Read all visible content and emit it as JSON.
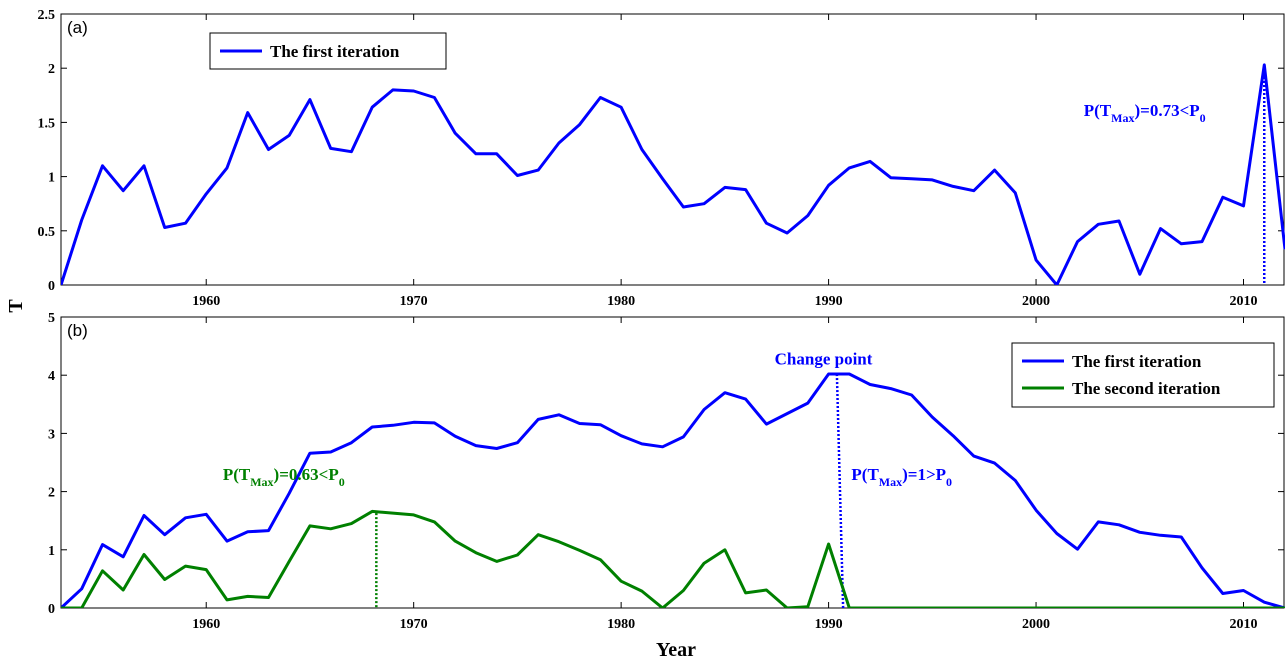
{
  "chart_data": [
    {
      "type": "line",
      "panel_label": "(a)",
      "xlabel": "",
      "ylabel": "",
      "xlim": [
        1953,
        2012
      ],
      "ylim": [
        0,
        2.5
      ],
      "xticks": [
        1960,
        1970,
        1980,
        1990,
        2000,
        2010
      ],
      "yticks": [
        0,
        0.5,
        1,
        1.5,
        2,
        2.5
      ],
      "ytick_labels": [
        "0",
        "0.5",
        "1",
        "1.5",
        "2",
        "2.5"
      ],
      "legend_position": "top-left",
      "series": [
        {
          "name": "The first iteration",
          "color": "#0000ff",
          "x": [
            1953,
            1954,
            1955,
            1956,
            1957,
            1958,
            1959,
            1960,
            1961,
            1962,
            1963,
            1964,
            1965,
            1966,
            1967,
            1968,
            1969,
            1970,
            1971,
            1972,
            1973,
            1974,
            1975,
            1976,
            1977,
            1978,
            1979,
            1980,
            1981,
            1982,
            1983,
            1984,
            1985,
            1986,
            1987,
            1988,
            1989,
            1990,
            1991,
            1992,
            1993,
            1994,
            1995,
            1996,
            1997,
            1998,
            1999,
            2000,
            2001,
            2002,
            2003,
            2004,
            2005,
            2006,
            2007,
            2008,
            2009,
            2010,
            2011,
            2012
          ],
          "y": [
            0,
            0.6,
            1.1,
            0.87,
            1.1,
            0.53,
            0.57,
            0.84,
            1.08,
            1.59,
            1.25,
            1.38,
            1.71,
            1.26,
            1.23,
            1.64,
            1.8,
            1.79,
            1.73,
            1.4,
            1.21,
            1.21,
            1.01,
            1.06,
            1.31,
            1.48,
            1.73,
            1.64,
            1.25,
            0.98,
            0.72,
            0.75,
            0.9,
            0.88,
            0.57,
            0.48,
            0.64,
            0.92,
            1.08,
            1.14,
            0.99,
            0.98,
            0.97,
            0.91,
            0.87,
            1.06,
            0.85,
            0.23,
            0,
            0.4,
            0.56,
            0.59,
            0.1,
            0.52,
            0.38,
            0.4,
            0.81,
            0.73,
            2.03,
            0.33
          ]
        }
      ],
      "vlines": [
        {
          "x": 2011,
          "y_top": 2.03,
          "color": "#0000ff"
        }
      ],
      "annotations": [
        {
          "pre": "P(T",
          "sub1": "Max",
          "mid": ")=0.73<P",
          "sub2": "0",
          "x": 2002.3,
          "y": 1.56,
          "color": "#0000ff"
        }
      ]
    },
    {
      "type": "line",
      "panel_label": "(b)",
      "xlabel": "Year",
      "ylabel": "",
      "xlim": [
        1953,
        2012
      ],
      "ylim": [
        0,
        5
      ],
      "xticks": [
        1960,
        1970,
        1980,
        1990,
        2000,
        2010
      ],
      "yticks": [
        0,
        1,
        2,
        3,
        4,
        5
      ],
      "ytick_labels": [
        "0",
        "1",
        "2",
        "3",
        "4",
        "5"
      ],
      "legend_position": "top-right",
      "series": [
        {
          "name": "The first iteration",
          "color": "#0000ff",
          "x": [
            1953,
            1954,
            1955,
            1956,
            1957,
            1958,
            1959,
            1960,
            1961,
            1962,
            1963,
            1964,
            1965,
            1966,
            1967,
            1968,
            1969,
            1970,
            1971,
            1972,
            1973,
            1974,
            1975,
            1976,
            1977,
            1978,
            1979,
            1980,
            1981,
            1982,
            1983,
            1984,
            1985,
            1986,
            1987,
            1988,
            1989,
            1990,
            1991,
            1992,
            1993,
            1994,
            1995,
            1996,
            1997,
            1998,
            1999,
            2000,
            2001,
            2002,
            2003,
            2004,
            2005,
            2006,
            2007,
            2008,
            2009,
            2010,
            2011,
            2012
          ],
          "y": [
            0,
            0.33,
            1.09,
            0.88,
            1.59,
            1.26,
            1.55,
            1.61,
            1.15,
            1.31,
            1.33,
            1.97,
            2.66,
            2.68,
            2.84,
            3.11,
            3.14,
            3.19,
            3.18,
            2.95,
            2.79,
            2.74,
            2.84,
            3.24,
            3.32,
            3.17,
            3.15,
            2.96,
            2.82,
            2.77,
            2.94,
            3.41,
            3.7,
            3.59,
            3.16,
            3.34,
            3.52,
            4.02,
            4.02,
            3.84,
            3.77,
            3.66,
            3.28,
            2.96,
            2.61,
            2.49,
            2.19,
            1.68,
            1.28,
            1.01,
            1.48,
            1.43,
            1.3,
            1.25,
            1.22,
            0.69,
            0.25,
            0.3,
            0.1,
            0
          ]
        },
        {
          "name": "The second iteration",
          "color": "#008000",
          "x": [
            1953,
            1954,
            1955,
            1956,
            1957,
            1958,
            1959,
            1960,
            1961,
            1962,
            1963,
            1964,
            1965,
            1966,
            1967,
            1968,
            1969,
            1970,
            1971,
            1972,
            1973,
            1974,
            1975,
            1976,
            1977,
            1978,
            1979,
            1980,
            1981,
            1982,
            1983,
            1984,
            1985,
            1986,
            1987,
            1988,
            1989,
            1990,
            1991,
            1992,
            1993,
            1994,
            1995,
            1996,
            1997,
            1998,
            1999,
            2000,
            2001,
            2002,
            2003,
            2004,
            2005,
            2006,
            2007,
            2008,
            2009,
            2010,
            2011,
            2012
          ],
          "y": [
            0,
            0,
            0.64,
            0.31,
            0.92,
            0.49,
            0.72,
            0.66,
            0.14,
            0.2,
            0.18,
            0.8,
            1.41,
            1.36,
            1.45,
            1.66,
            1.63,
            1.6,
            1.48,
            1.15,
            0.95,
            0.8,
            0.91,
            1.26,
            1.14,
            0.99,
            0.83,
            0.46,
            0.29,
            0,
            0.3,
            0.77,
            1.0,
            0.26,
            0.31,
            0,
            0.02,
            1.1,
            0,
            0,
            0,
            0,
            0,
            0,
            0,
            0,
            0,
            0,
            0,
            0,
            0,
            0,
            0,
            0,
            0,
            0,
            0,
            0,
            0,
            0
          ]
        }
      ],
      "vlines": [
        {
          "x": 1968.2,
          "y_top": 1.63,
          "color": "#008000"
        },
        {
          "x": 1990.4,
          "x_bottom": 1990.7,
          "y_top": 4.02,
          "color": "#0000ff"
        }
      ],
      "annotations": [
        {
          "pre": "Change point",
          "x": 1987.4,
          "y": 4.18,
          "color": "#0000ff"
        },
        {
          "pre": "P(T",
          "sub1": "Max",
          "mid": ")=0.63<P",
          "sub2": "0",
          "x": 1960.8,
          "y": 2.2,
          "color": "#008000"
        },
        {
          "pre": "P(T",
          "sub1": "Max",
          "mid": ")=1>P",
          "sub2": "0",
          "x": 1991.1,
          "y": 2.2,
          "color": "#0000ff"
        }
      ]
    }
  ],
  "shared_ylabel": "T",
  "shared_xlabel": "Year"
}
